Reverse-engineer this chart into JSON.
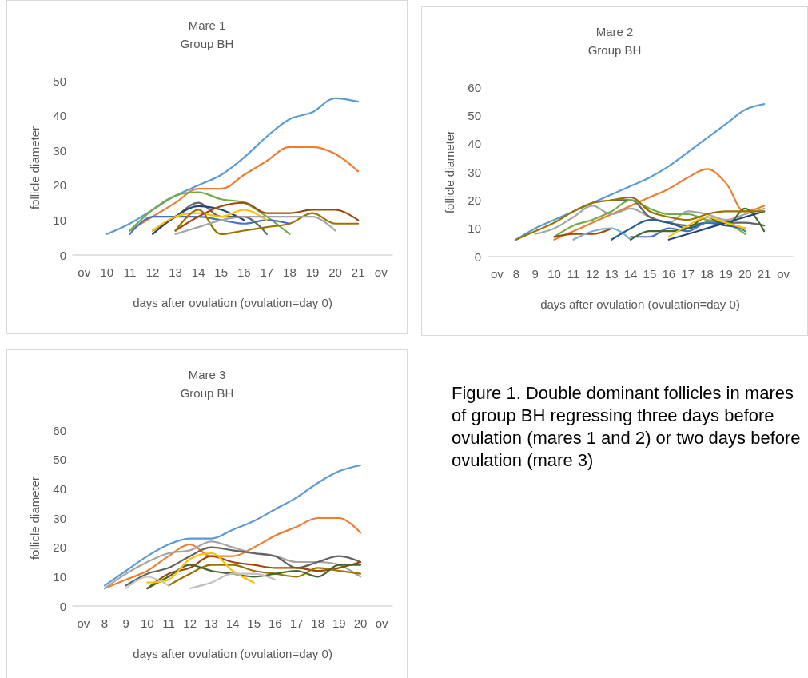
{
  "chart_data": [
    {
      "type": "line",
      "title": "Mare 1",
      "subtitle": "Group BH",
      "xlabel": "days after ovulation (ovulation=day 0)",
      "ylabel": "follicle diameter",
      "marker": "none",
      "categories": [
        "ov",
        "10",
        "11",
        "12",
        "13",
        "14",
        "15",
        "16",
        "17",
        "18",
        "19",
        "20",
        "21",
        "ov"
      ],
      "ylim": [
        0,
        50
      ],
      "yticks": [
        0,
        10,
        20,
        30,
        40,
        50
      ],
      "series": [
        {
          "color": "#5b9bd5",
          "values": [
            null,
            6,
            9,
            13,
            17,
            20,
            23,
            28,
            34,
            39,
            41,
            45,
            44,
            null
          ]
        },
        {
          "color": "#ed7d31",
          "values": [
            null,
            null,
            7,
            11,
            15,
            19,
            19,
            23,
            27,
            31,
            31,
            29,
            24,
            null
          ]
        },
        {
          "color": "#70ad47",
          "values": [
            null,
            null,
            7,
            13,
            17,
            18,
            16,
            15,
            11,
            6,
            null,
            null,
            null,
            null
          ]
        },
        {
          "color": "#4472c4",
          "values": [
            null,
            null,
            6,
            11,
            11,
            11,
            10,
            9,
            10,
            9,
            null,
            null,
            null,
            null
          ]
        },
        {
          "color": "#636363",
          "values": [
            null,
            null,
            null,
            7,
            11,
            15,
            11,
            11,
            6,
            null,
            null,
            null,
            null,
            null
          ]
        },
        {
          "color": "#264478",
          "values": [
            null,
            null,
            null,
            6,
            11,
            14,
            13,
            10,
            null,
            null,
            null,
            null,
            null,
            null
          ]
        },
        {
          "color": "#ffc000",
          "values": [
            null,
            null,
            null,
            7,
            11,
            12,
            11,
            13,
            10,
            null,
            null,
            null,
            null,
            null
          ]
        },
        {
          "color": "#9e480e",
          "values": [
            null,
            null,
            null,
            null,
            7,
            11,
            14,
            15,
            12,
            12,
            13,
            13,
            10,
            null
          ]
        },
        {
          "color": "#997300",
          "values": [
            null,
            null,
            null,
            null,
            7,
            13,
            6,
            7,
            8,
            9,
            12,
            9,
            9,
            null
          ]
        },
        {
          "color": "#a5a5a5",
          "values": [
            null,
            null,
            null,
            null,
            6,
            8,
            10,
            11,
            11,
            11,
            11,
            7,
            null,
            null
          ]
        }
      ]
    },
    {
      "type": "line",
      "title": "Mare 2",
      "subtitle": "Group BH",
      "xlabel": "days after ovulation (ovulation=day 0)",
      "ylabel": "follicle diameter",
      "marker": "none",
      "categories": [
        "ov",
        "8",
        "9",
        "10",
        "11",
        "12",
        "13",
        "14",
        "15",
        "16",
        "17",
        "18",
        "19",
        "20",
        "21",
        "ov"
      ],
      "ylim": [
        0,
        60
      ],
      "yticks": [
        0,
        10,
        20,
        30,
        40,
        50,
        60
      ],
      "series": [
        {
          "color": "#5b9bd5",
          "values": [
            null,
            6,
            10,
            13,
            16,
            19,
            22,
            25,
            28,
            32,
            37,
            42,
            47,
            52,
            54,
            null
          ]
        },
        {
          "color": "#ed7d31",
          "values": [
            null,
            null,
            null,
            6,
            9,
            12,
            15,
            18,
            21,
            24,
            28,
            31,
            26,
            16,
            18,
            null
          ]
        },
        {
          "color": "#a5a5a5",
          "values": [
            null,
            null,
            8,
            10,
            14,
            18,
            15,
            17,
            14,
            12,
            16,
            15,
            13,
            15,
            17,
            null
          ]
        },
        {
          "color": "#636363",
          "values": [
            null,
            null,
            null,
            null,
            null,
            null,
            20,
            20,
            14,
            12,
            11,
            12,
            12,
            12,
            11,
            null
          ]
        },
        {
          "color": "#70ad47",
          "values": [
            null,
            null,
            null,
            7,
            11,
            13,
            16,
            20,
            17,
            15,
            15,
            13,
            12,
            8,
            null,
            null
          ]
        },
        {
          "color": "#9e480e",
          "values": [
            null,
            null,
            null,
            7,
            8,
            8,
            10,
            null,
            null,
            null,
            null,
            null,
            null,
            null,
            null,
            null
          ]
        },
        {
          "color": "#7cafdd",
          "values": [
            null,
            null,
            null,
            null,
            6,
            9,
            10,
            6,
            null,
            null,
            null,
            null,
            null,
            null,
            null,
            null
          ]
        },
        {
          "color": "#255e91",
          "values": [
            null,
            null,
            null,
            null,
            null,
            null,
            6,
            10,
            13,
            12,
            10,
            12,
            11,
            10,
            null,
            null
          ]
        },
        {
          "color": "#4472c4",
          "values": [
            null,
            null,
            null,
            null,
            null,
            null,
            null,
            7,
            7,
            10,
            9,
            12,
            12,
            9,
            null,
            null
          ]
        },
        {
          "color": "#43682b",
          "values": [
            null,
            null,
            null,
            null,
            null,
            null,
            null,
            6,
            9,
            9,
            10,
            14,
            11,
            17,
            9,
            null
          ]
        },
        {
          "color": "#264478",
          "values": [
            null,
            null,
            null,
            null,
            null,
            null,
            null,
            null,
            null,
            6,
            8,
            10,
            12,
            14,
            16,
            null
          ]
        },
        {
          "color": "#ffc000",
          "values": [
            null,
            null,
            null,
            null,
            null,
            null,
            null,
            null,
            null,
            7,
            11,
            14,
            12,
            10,
            null,
            null
          ]
        },
        {
          "color": "#997300",
          "values": [
            null,
            6,
            9,
            12,
            16,
            19,
            20,
            21,
            16,
            14,
            13,
            15,
            16,
            16,
            16,
            null
          ]
        }
      ]
    },
    {
      "type": "line",
      "title": "Mare 3",
      "subtitle": "Group BH",
      "xlabel": "days after ovulation (ovulation=day 0)",
      "ylabel": "follicle diameter",
      "marker": "none",
      "categories": [
        "ov",
        "8",
        "9",
        "10",
        "11",
        "12",
        "13",
        "14",
        "15",
        "16",
        "17",
        "18",
        "19",
        "20",
        "ov"
      ],
      "ylim": [
        0,
        60
      ],
      "yticks": [
        0,
        10,
        20,
        30,
        40,
        50,
        60
      ],
      "series": [
        {
          "color": "#5b9bd5",
          "values": [
            null,
            7,
            12,
            17,
            21,
            23,
            23,
            26,
            29,
            33,
            37,
            42,
            46,
            48,
            null
          ]
        },
        {
          "color": "#ed7d31",
          "values": [
            null,
            6,
            9,
            12,
            17,
            21,
            17,
            17,
            20,
            24,
            27,
            30,
            30,
            25,
            null
          ]
        },
        {
          "color": "#a5a5a5",
          "values": [
            null,
            6,
            11,
            15,
            18,
            19,
            22,
            20,
            18,
            17,
            15,
            15,
            14,
            10,
            null
          ]
        },
        {
          "color": "#636363",
          "values": [
            null,
            null,
            7,
            11,
            13,
            17,
            20,
            19,
            18,
            17,
            13,
            15,
            17,
            15,
            null
          ]
        },
        {
          "color": "#9e480e",
          "values": [
            null,
            null,
            null,
            6,
            11,
            13,
            17,
            15,
            14,
            13,
            13,
            12,
            13,
            15,
            null
          ]
        },
        {
          "color": "#997300",
          "values": [
            null,
            null,
            null,
            null,
            7,
            11,
            14,
            14,
            12,
            11,
            10,
            13,
            12,
            11,
            null
          ]
        },
        {
          "color": "#43682b",
          "values": [
            null,
            null,
            null,
            6,
            10,
            14,
            12,
            11,
            10,
            11,
            12,
            10,
            14,
            14,
            null
          ]
        },
        {
          "color": "#ffc000",
          "values": [
            null,
            null,
            null,
            8,
            9,
            16,
            18,
            12,
            8,
            null,
            null,
            null,
            null,
            null,
            null
          ]
        },
        {
          "color": "#c9c9c9",
          "values": [
            null,
            null,
            6,
            10,
            7,
            null,
            null,
            null,
            null,
            null,
            null,
            null,
            null,
            null,
            null
          ]
        },
        {
          "color": "#bfbfbf",
          "values": [
            null,
            null,
            null,
            null,
            null,
            6,
            8,
            11,
            11,
            9,
            null,
            null,
            null,
            null,
            null
          ]
        }
      ]
    },
    {
      "type": "other",
      "annotations": [
        "Figure 1. Double dominant follicles in mares of group BH regressing three days before ovulation (mares 1 and 2) or two days before ovulation (mare 3)"
      ]
    }
  ]
}
